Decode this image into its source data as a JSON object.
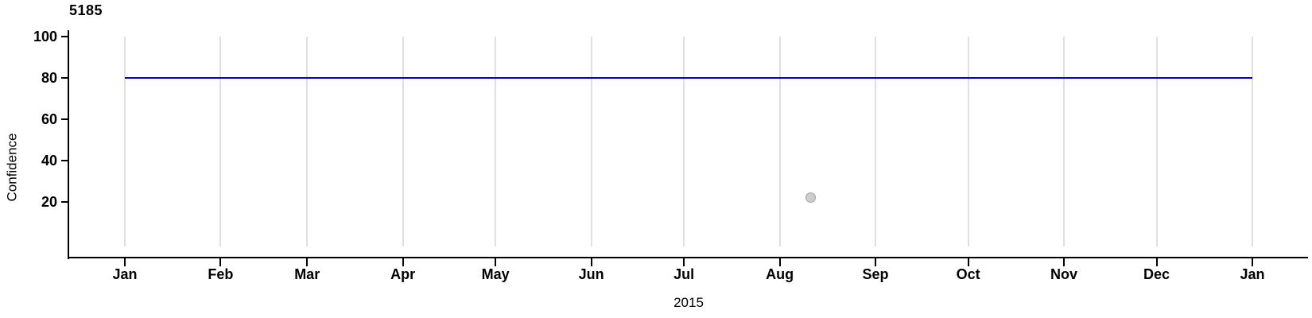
{
  "chart_data": {
    "type": "line",
    "title": "5185",
    "xlabel": "2015",
    "ylabel": "Confidence",
    "legend": "none",
    "grid": "vertical-only",
    "gridline_color": "#E0E0E0",
    "axis_color": "#000000",
    "x_axis": {
      "kind": "date-months-of-2015",
      "range_days": [
        0,
        365
      ],
      "ticks": [
        {
          "label": "Jan",
          "day": 0
        },
        {
          "label": "Feb",
          "day": 31
        },
        {
          "label": "Mar",
          "day": 59
        },
        {
          "label": "Apr",
          "day": 90
        },
        {
          "label": "May",
          "day": 120
        },
        {
          "label": "Jun",
          "day": 151
        },
        {
          "label": "Jul",
          "day": 181
        },
        {
          "label": "Aug",
          "day": 212
        },
        {
          "label": "Sep",
          "day": 243
        },
        {
          "label": "Oct",
          "day": 273
        },
        {
          "label": "Nov",
          "day": 304
        },
        {
          "label": "Dec",
          "day": 334
        },
        {
          "label": "Jan",
          "day": 365
        }
      ]
    },
    "y_axis": {
      "ticks": [
        20,
        40,
        60,
        80,
        100
      ],
      "range": [
        -7,
        103
      ]
    },
    "series": [
      {
        "name": "confidence-level-line",
        "type": "line",
        "color": "#0000D8",
        "points": [
          {
            "day": 0,
            "value": 80
          },
          {
            "day": 365,
            "value": 80
          }
        ]
      },
      {
        "name": "outlier-point",
        "type": "scatter",
        "fill": "#CDCDCD",
        "stroke": "#A3A3A3",
        "points": [
          {
            "day": 222,
            "value": 22
          }
        ]
      }
    ]
  }
}
